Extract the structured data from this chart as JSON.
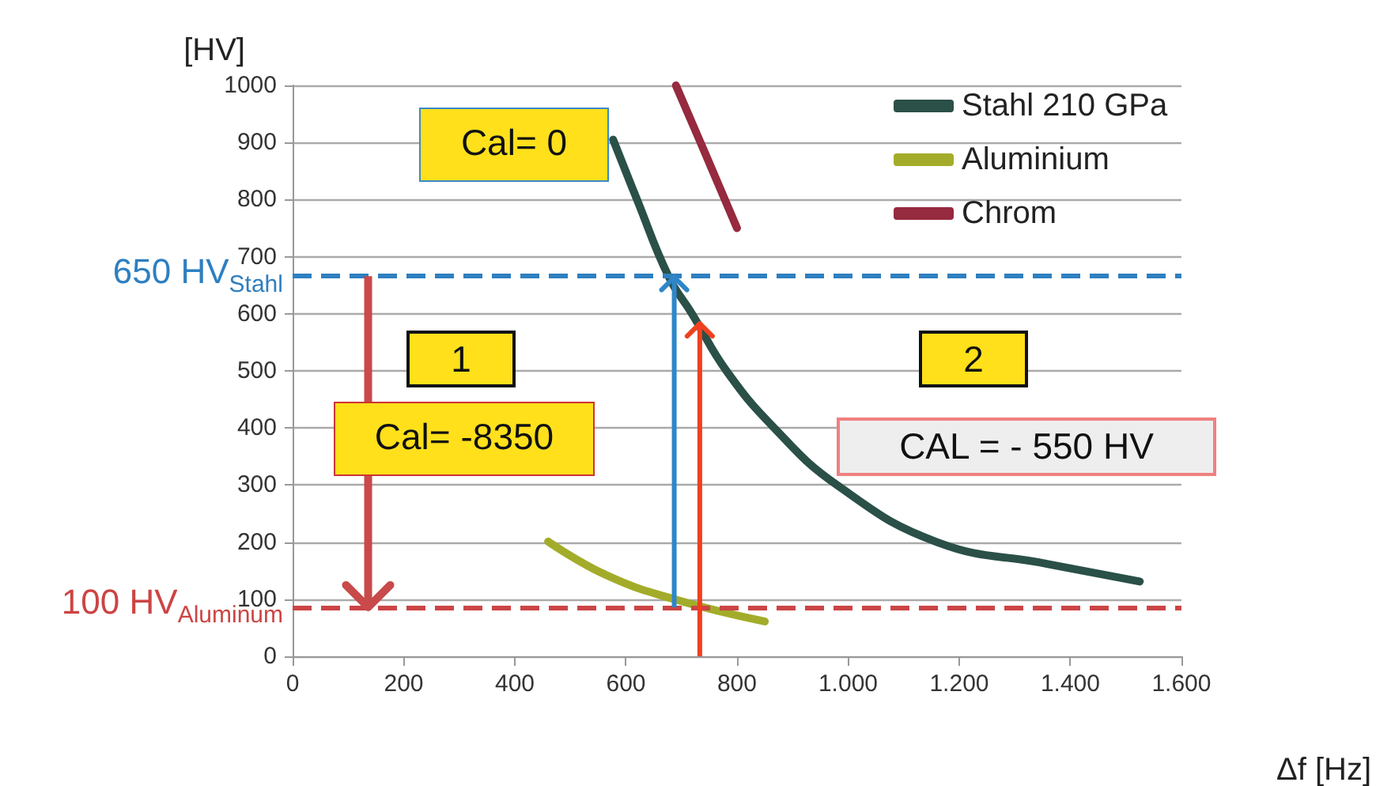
{
  "chart_data": {
    "type": "line",
    "xlabel": "Δf [Hz]",
    "ylabel": "[HV]",
    "xlim": [
      0,
      1600
    ],
    "xticks": [
      0,
      200,
      400,
      600,
      800,
      {
        "value": 1000,
        "label": "1.000"
      },
      {
        "value": 1200,
        "label": "1.200"
      },
      {
        "value": 1400,
        "label": "1.400"
      },
      {
        "value": 1600,
        "label": "1.600"
      }
    ],
    "ylim": [
      0,
      1000
    ],
    "yticks": [
      0,
      100,
      200,
      300,
      400,
      500,
      600,
      700,
      800,
      900,
      1000
    ],
    "grid": "y",
    "legend": "top right",
    "marker": "none",
    "line_style": "solid",
    "series": [
      {
        "name": "Stahl 210 GPa",
        "color": "#2a5048",
        "x": [
          577,
          620,
          677,
          719,
          781,
          867,
          980,
          1160,
          1358,
          1525
        ],
        "values": [
          905,
          800,
          665,
          600,
          500,
          400,
          300,
          200,
          162,
          131
        ]
      },
      {
        "name": "Aluminium",
        "color": "#a3ac2a",
        "x": [
          460,
          563,
          687,
          850
        ],
        "values": [
          201,
          143,
          100,
          61
        ]
      },
      {
        "name": "Chrom",
        "color": "#962a3e",
        "x": [
          690,
          744,
          800
        ],
        "values": [
          1000,
          878,
          750
        ]
      }
    ],
    "ref_lines": [
      {
        "axis": "y",
        "value": 666,
        "label": "650 HV$_{Stahl}$",
        "color": "#2e7fc0",
        "line_style": "dashed"
      },
      {
        "axis": "y",
        "value": 85,
        "label": "100 HV$_{Aluminum}$",
        "color": "#cc4444",
        "line_style": "dashed"
      }
    ],
    "annotations": [
      "Cal= 0",
      "1",
      "2",
      "Cal= -8350",
      "CAL = - 550 HV"
    ]
  }
}
